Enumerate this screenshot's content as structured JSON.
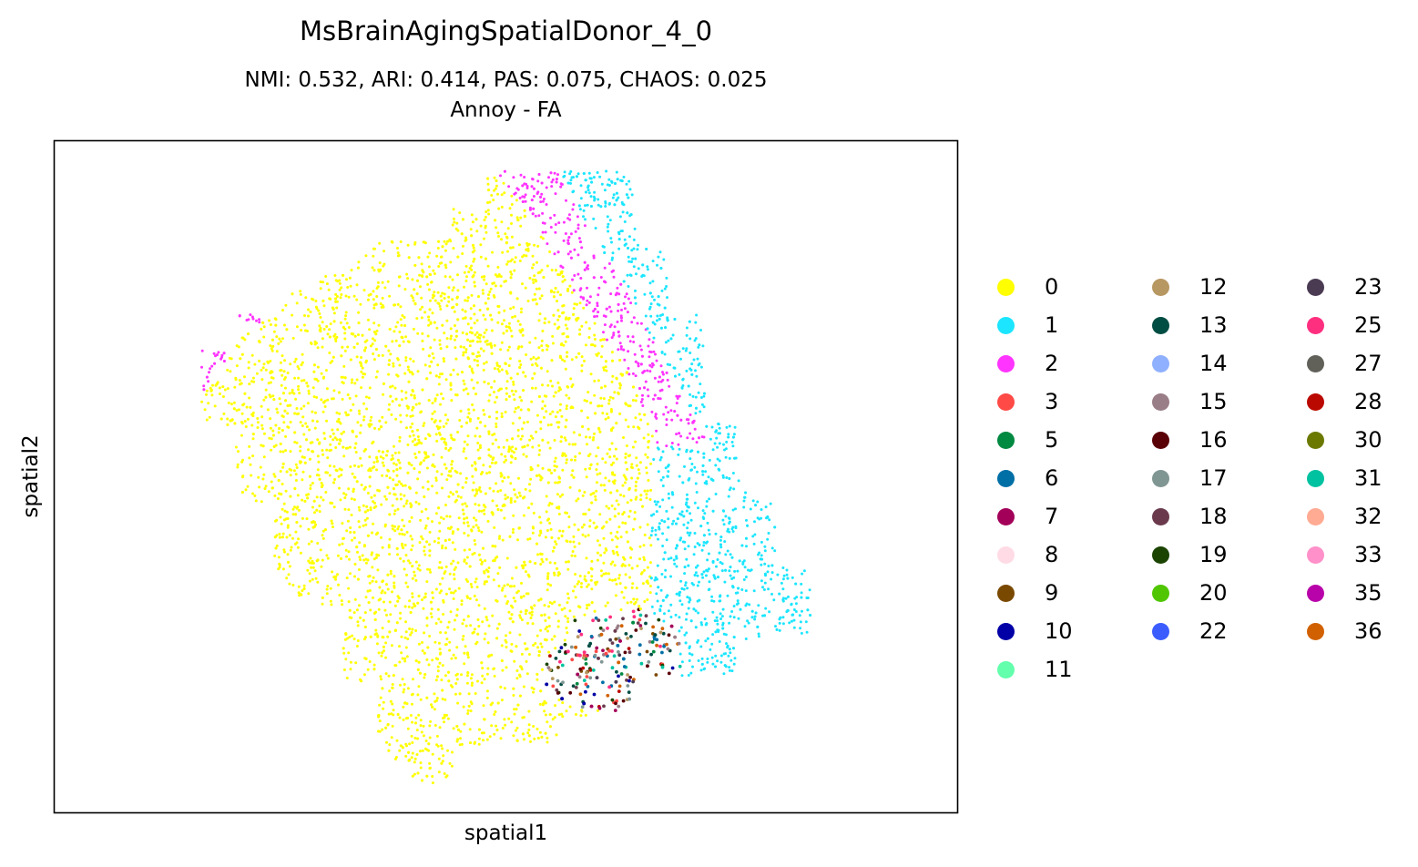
{
  "chart_data": {
    "type": "scatter",
    "title": "MsBrainAgingSpatialDonor_4_0",
    "subtitle_metrics": "NMI: 0.532,  ARI: 0.414,  PAS: 0.075,  CHAOS: 0.025",
    "subtitle_method": "Annoy - FA",
    "xlabel": "spatial1",
    "ylabel": "spatial2",
    "grid": false,
    "legend_placement": "right",
    "legend_columns": 3,
    "series": [
      {
        "name": "0",
        "color": "#ffff00"
      },
      {
        "name": "1",
        "color": "#1ce6ff"
      },
      {
        "name": "2",
        "color": "#ff34ff"
      },
      {
        "name": "3",
        "color": "#ff4a46"
      },
      {
        "name": "5",
        "color": "#008941"
      },
      {
        "name": "6",
        "color": "#006fa6"
      },
      {
        "name": "7",
        "color": "#a30059"
      },
      {
        "name": "8",
        "color": "#ffdbe5"
      },
      {
        "name": "9",
        "color": "#7a4900"
      },
      {
        "name": "10",
        "color": "#0000a6"
      },
      {
        "name": "11",
        "color": "#63ffac"
      },
      {
        "name": "12",
        "color": "#b79762"
      },
      {
        "name": "13",
        "color": "#004d43"
      },
      {
        "name": "14",
        "color": "#8fb0ff"
      },
      {
        "name": "15",
        "color": "#997d87"
      },
      {
        "name": "16",
        "color": "#5a0007"
      },
      {
        "name": "17",
        "color": "#809693"
      },
      {
        "name": "18",
        "color": "#6a3a4c"
      },
      {
        "name": "19",
        "color": "#1b4400"
      },
      {
        "name": "20",
        "color": "#4fc601"
      },
      {
        "name": "22",
        "color": "#3b5dff"
      },
      {
        "name": "23",
        "color": "#4a3b53"
      },
      {
        "name": "25",
        "color": "#ff2f80"
      },
      {
        "name": "27",
        "color": "#61615a"
      },
      {
        "name": "28",
        "color": "#ba0900"
      },
      {
        "name": "30",
        "color": "#6b7900"
      },
      {
        "name": "31",
        "color": "#00c2a0"
      },
      {
        "name": "32",
        "color": "#ffaa92"
      },
      {
        "name": "33",
        "color": "#ff90c9"
      },
      {
        "name": "35",
        "color": "#b903aa"
      },
      {
        "name": "36",
        "color": "#d16100"
      }
    ],
    "approximate_regions": {
      "0": "large central tissue region (majority of spots)",
      "1": "right-side band, lower right lobe",
      "2": "upper-right diagonal band and small left-edge patches",
      "mixed": "small bottom cluster containing many minor clusters (3, 5, 6, 7, 10, 13, 16, 18, 25, 28, 31, ...)"
    }
  }
}
